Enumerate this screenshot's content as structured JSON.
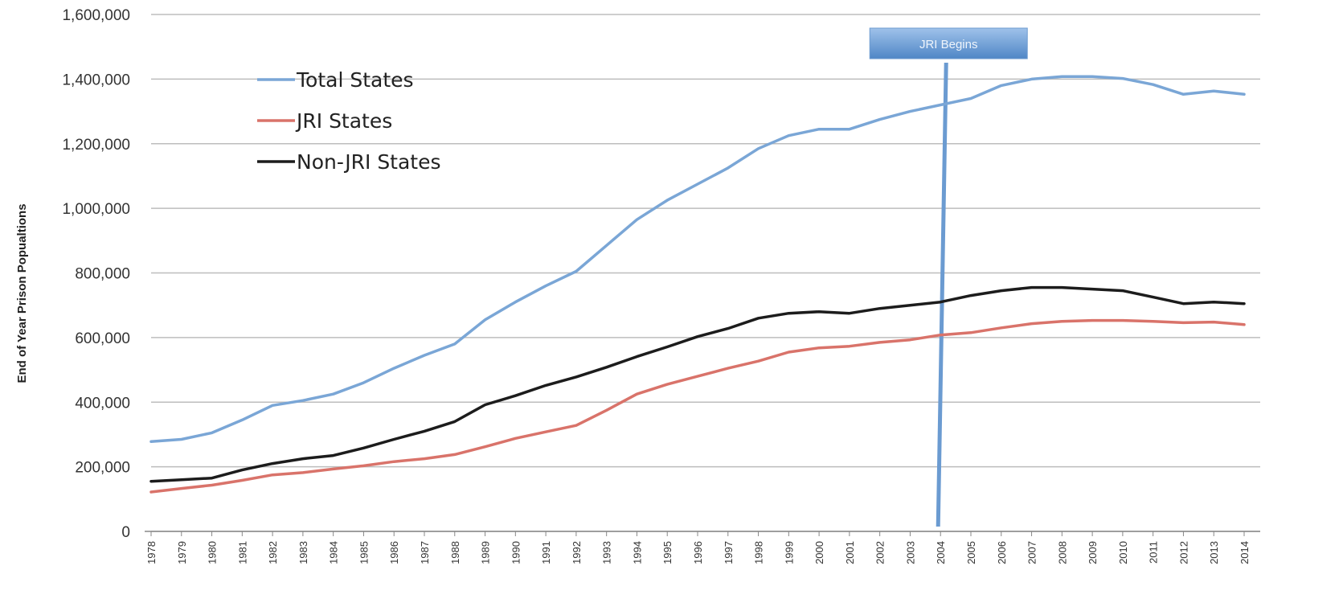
{
  "chart_data": {
    "type": "line",
    "ylabel": "End of Year Prison Popualtions",
    "xlabel": "",
    "ylim": [
      0,
      1600000
    ],
    "ytick_values": [
      0,
      200000,
      400000,
      600000,
      800000,
      1000000,
      1200000,
      1400000,
      1600000
    ],
    "ytick_labels": [
      "0",
      "200,000",
      "400,000",
      "600,000",
      "800,000",
      "1,000,000",
      "1,200,000",
      "1,400,000",
      "1,600,000"
    ],
    "grid": true,
    "legend_position": "top-left",
    "categories": [
      "1978",
      "1979",
      "1980",
      "1981",
      "1982",
      "1983",
      "1984",
      "1985",
      "1986",
      "1987",
      "1988",
      "1989",
      "1990",
      "1991",
      "1992",
      "1993",
      "1994",
      "1995",
      "1996",
      "1997",
      "1998",
      "1999",
      "2000",
      "2001",
      "2002",
      "2003",
      "2004",
      "2005",
      "2006",
      "2007",
      "2008",
      "2009",
      "2010",
      "2011",
      "2012",
      "2013",
      "2014"
    ],
    "series": [
      {
        "name": "Total States",
        "color": "#7aa6d6",
        "values": [
          278000,
          285000,
          305000,
          345000,
          390000,
          405000,
          425000,
          460000,
          505000,
          545000,
          580000,
          655000,
          710000,
          760000,
          805000,
          885000,
          965000,
          1025000,
          1075000,
          1125000,
          1185000,
          1225000,
          1245000,
          1245000,
          1275000,
          1300000,
          1320000,
          1340000,
          1380000,
          1400000,
          1408000,
          1408000,
          1402000,
          1383000,
          1353000,
          1363000,
          1353000
        ]
      },
      {
        "name": "JRI States",
        "color": "#d9736a",
        "values": [
          122000,
          133000,
          143000,
          158000,
          175000,
          182000,
          193000,
          203000,
          216000,
          225000,
          238000,
          262000,
          288000,
          308000,
          328000,
          375000,
          425000,
          455000,
          480000,
          505000,
          527000,
          555000,
          568000,
          573000,
          585000,
          593000,
          608000,
          615000,
          630000,
          643000,
          650000,
          653000,
          653000,
          650000,
          646000,
          648000,
          640000
        ]
      },
      {
        "name": "Non-JRI States",
        "color": "#1c1c1c",
        "values": [
          155000,
          160000,
          165000,
          190000,
          210000,
          225000,
          235000,
          258000,
          285000,
          310000,
          340000,
          392000,
          420000,
          452000,
          478000,
          508000,
          541000,
          571000,
          603000,
          628000,
          660000,
          675000,
          680000,
          675000,
          690000,
          700000,
          710000,
          730000,
          745000,
          755000,
          755000,
          750000,
          745000,
          725000,
          705000,
          710000,
          705000
        ]
      }
    ],
    "annotation": {
      "label": "JRI Begins",
      "x": "2004"
    }
  }
}
